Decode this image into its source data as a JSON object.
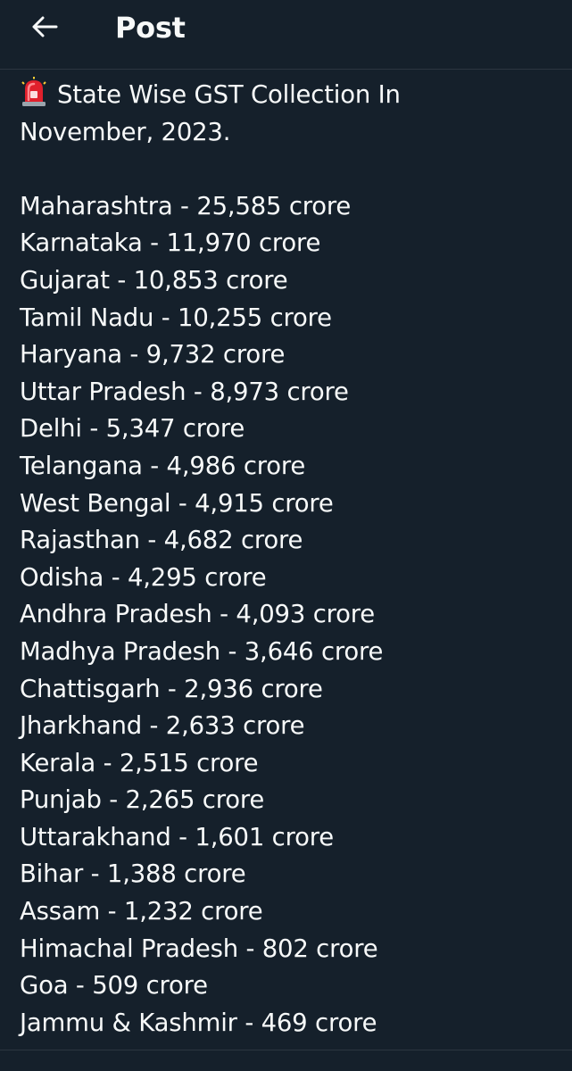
{
  "header": {
    "title": "Post",
    "back_icon": "arrow-left-icon"
  },
  "post": {
    "emoji_icon": "police-siren-icon",
    "headline_line1": "State Wise GST Collection In",
    "headline_line2": "November, 2023.",
    "items": [
      "Maharashtra - 25,585 crore",
      "Karnataka - 11,970 crore",
      "Gujarat - 10,853 crore",
      "Tamil Nadu - 10,255 crore",
      "Haryana - 9,732 crore",
      "Uttar Pradesh - 8,973 crore",
      "Delhi - 5,347 crore",
      "Telangana - 4,986 crore",
      "West Bengal - 4,915 crore",
      "Rajasthan - 4,682 crore",
      "Odisha - 4,295 crore",
      "Andhra Pradesh - 4,093 crore",
      "Madhya Pradesh - 3,646 crore",
      "Chattisgarh - 2,936 crore",
      "Jharkhand - 2,633 crore",
      "Kerala - 2,515 crore",
      "Punjab - 2,265 crore",
      "Uttarakhand - 1,601 crore",
      "Bihar - 1,388 crore",
      "Assam - 1,232 crore",
      "Himachal Pradesh - 802 crore",
      "Goa - 509 crore",
      "Jammu & Kashmir - 469 crore"
    ]
  },
  "colors": {
    "background": "#15202b",
    "text": "#f7f9f9",
    "divider": "#2c3640"
  }
}
